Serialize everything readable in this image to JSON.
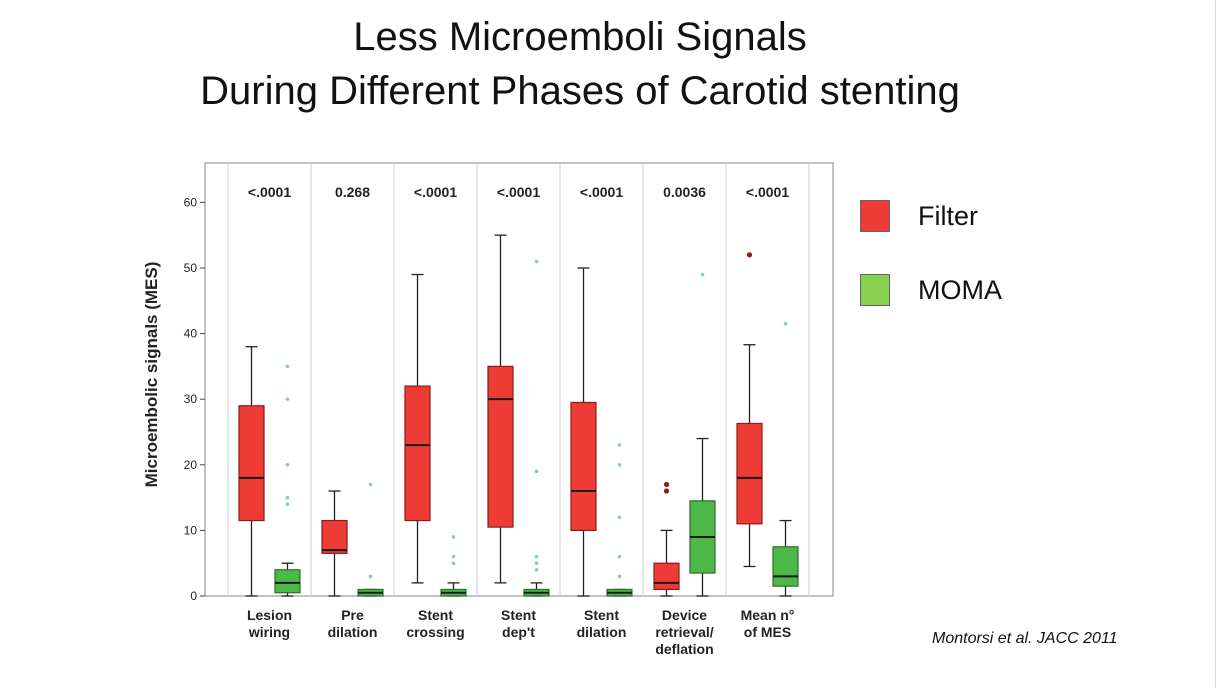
{
  "slide": {
    "title_line1": "Less Microemboli Signals",
    "title_line2": "During Different Phases of Carotid stenting",
    "citation": "Montorsi et al. JACC 2011"
  },
  "legend": [
    {
      "label": "Filter",
      "color": "#ef3b36"
    },
    {
      "label": "MOMA",
      "color": "#88cf4e"
    }
  ],
  "chart_data": {
    "type": "box",
    "ylabel": "Microembolic signals (MES)",
    "ylim": [
      0,
      66
    ],
    "yticks": [
      0,
      10,
      20,
      30,
      40,
      50,
      60
    ],
    "grid": false,
    "legend_position": "right",
    "categories": [
      {
        "lines": [
          "Lesion",
          "wiring"
        ],
        "p_value": "<.0001"
      },
      {
        "lines": [
          "Pre",
          "dilation"
        ],
        "p_value": "0.268"
      },
      {
        "lines": [
          "Stent",
          "crossing"
        ],
        "p_value": "<.0001"
      },
      {
        "lines": [
          "Stent",
          "dep't"
        ],
        "p_value": "<.0001"
      },
      {
        "lines": [
          "Stent",
          "dilation"
        ],
        "p_value": "<.0001"
      },
      {
        "lines": [
          "Device",
          "retrieval/",
          "deflation"
        ],
        "p_value": "0.0036"
      },
      {
        "lines": [
          "Mean n°",
          "of MES"
        ],
        "p_value": "<.0001"
      }
    ],
    "series": [
      {
        "name": "Filter",
        "color": "#ef3b36",
        "edge": "#8a1c18",
        "boxes": [
          {
            "min": 0,
            "q1": 11.5,
            "median": 18,
            "q3": 29,
            "max": 38,
            "outliers": []
          },
          {
            "min": 0,
            "q1": 6.5,
            "median": 7,
            "q3": 11.5,
            "max": 16,
            "outliers": []
          },
          {
            "min": 2,
            "q1": 11.5,
            "median": 23,
            "q3": 32,
            "max": 49,
            "outliers": []
          },
          {
            "min": 2,
            "q1": 10.5,
            "median": 30,
            "q3": 35,
            "max": 55,
            "outliers": []
          },
          {
            "min": 0,
            "q1": 10,
            "median": 16,
            "q3": 29.5,
            "max": 50,
            "outliers": []
          },
          {
            "min": 0,
            "q1": 1,
            "median": 2,
            "q3": 5,
            "max": 10,
            "outliers": [
              16,
              17
            ]
          },
          {
            "min": 4.5,
            "q1": 11,
            "median": 18,
            "q3": 26.3,
            "max": 38.3,
            "outliers": [
              52
            ]
          }
        ]
      },
      {
        "name": "MOMA",
        "color": "#4db848",
        "edge": "#2a6e28",
        "boxes": [
          {
            "min": 0,
            "q1": 0.5,
            "median": 2,
            "q3": 4,
            "max": 5,
            "outliers": [
              14,
              15,
              20,
              30,
              35
            ]
          },
          {
            "min": 0,
            "q1": 0,
            "median": 0.5,
            "q3": 1,
            "max": 1,
            "outliers": [
              3,
              17
            ]
          },
          {
            "min": 0,
            "q1": 0,
            "median": 0.5,
            "q3": 1,
            "max": 2,
            "outliers": [
              5,
              6,
              9
            ]
          },
          {
            "min": 0,
            "q1": 0,
            "median": 0.5,
            "q3": 1,
            "max": 2,
            "outliers": [
              4,
              5,
              6,
              19,
              51
            ]
          },
          {
            "min": 0,
            "q1": 0,
            "median": 0.5,
            "q3": 1,
            "max": 1,
            "outliers": [
              3,
              6,
              12,
              20,
              23
            ]
          },
          {
            "min": 0,
            "q1": 3.5,
            "median": 9,
            "q3": 14.5,
            "max": 24,
            "outliers": [
              49
            ]
          },
          {
            "min": 0,
            "q1": 1.5,
            "median": 3,
            "q3": 7.5,
            "max": 11.5,
            "outliers": [
              41.5
            ]
          }
        ]
      }
    ]
  }
}
